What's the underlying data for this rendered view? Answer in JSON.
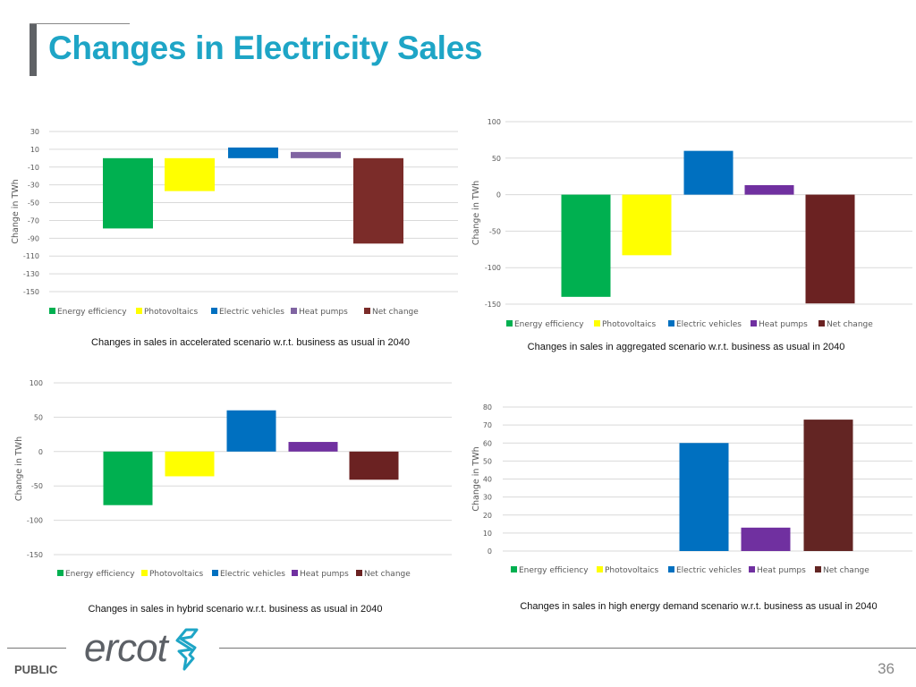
{
  "slide": {
    "title": "Changes in Electricity Sales",
    "footer_label": "PUBLIC",
    "page_number": "36",
    "logo_text": "ercot",
    "accent_color": "#1ea5c6"
  },
  "chart_data": [
    {
      "type": "bar",
      "ylabel": "Change  in TWh",
      "categories": [
        "Energy efficiency",
        "Photovoltaics",
        "Electric vehicles",
        "Heat pumps",
        "Net change"
      ],
      "values": [
        -79,
        -37,
        12,
        7,
        -96
      ],
      "yticks": [
        30,
        10,
        -10,
        -30,
        -50,
        -70,
        -90,
        -110,
        -130,
        -150
      ],
      "ylim": [
        -150,
        30
      ],
      "grid": true,
      "legend": "bottom",
      "caption": "Changes in sales in accelerated scenario w.r.t. business as usual in 2040"
    },
    {
      "type": "bar",
      "ylabel": "Change  in TWh",
      "categories": [
        "Energy efficiency",
        "Photovoltaics",
        "Electric vehicles",
        "Heat pumps",
        "Net change"
      ],
      "values": [
        -140,
        -83,
        60,
        13,
        -149
      ],
      "yticks": [
        100,
        50,
        0,
        -50,
        -100,
        -150
      ],
      "ylim": [
        -150,
        100
      ],
      "grid": true,
      "legend": "bottom",
      "caption": "Changes in sales in aggregated scenario w.r.t. business as usual in 2040"
    },
    {
      "type": "bar",
      "ylabel": "Change in TWh",
      "categories": [
        "Energy efficiency",
        "Photovoltaics",
        "Electric vehicles",
        "Heat pumps",
        "Net change"
      ],
      "values": [
        -78,
        -36,
        60,
        14,
        -41
      ],
      "yticks": [
        100,
        50,
        0,
        -50,
        -100,
        -150
      ],
      "ylim": [
        -150,
        100
      ],
      "grid": true,
      "legend": "bottom",
      "caption": "Changes in sales in hybrid scenario w.r.t. business as usual in 2040"
    },
    {
      "type": "bar",
      "ylabel": "Change in TWh",
      "categories": [
        "Energy efficiency",
        "Photovoltaics",
        "Electric vehicles",
        "Heat pumps",
        "Net change"
      ],
      "values": [
        0,
        0,
        60,
        13,
        73
      ],
      "yticks": [
        80,
        70,
        60,
        50,
        40,
        30,
        20,
        10,
        0
      ],
      "ylim": [
        0,
        80
      ],
      "grid": true,
      "legend": "bottom",
      "caption": "Changes in sales in high energy demand scenario w.r.t. business as usual in 2040"
    }
  ],
  "series_colors": {
    "Energy efficiency": "#00b050",
    "Photovoltaics": "#ffff00",
    "Electric vehicles": "#0070c0",
    "Heat pumps": [
      "#8064a2",
      "#7030a0",
      "#7030a0",
      "#7030a0"
    ],
    "Net change": [
      "#7b2c29",
      "#6b2222",
      "#6b2222",
      "#632523"
    ]
  }
}
